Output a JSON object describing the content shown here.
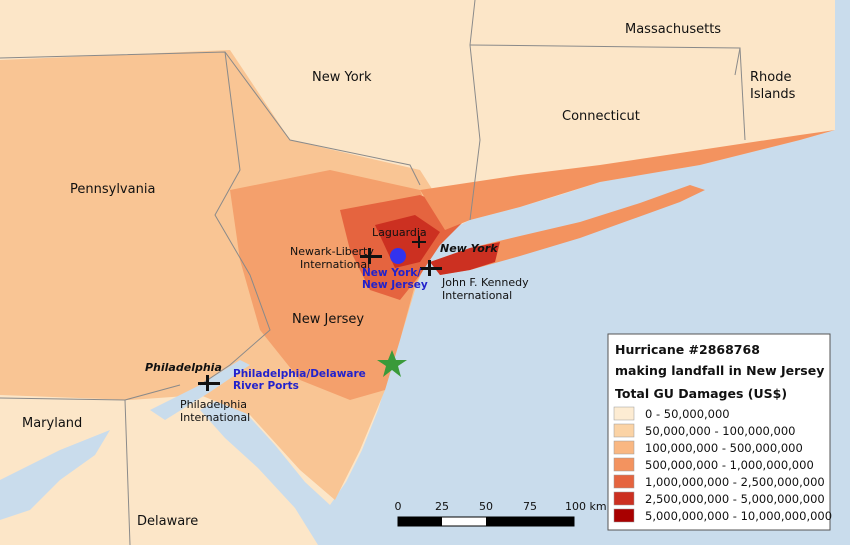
{
  "map": {
    "state_labels": [
      "Massachusetts",
      "New York",
      "Rhode",
      "Islands",
      "Connecticut",
      "Pennsylvania",
      "New Jersey",
      "Maryland",
      "Delaware"
    ],
    "airports": {
      "laguardia": "Laguardia",
      "newark": [
        "Newark-Liberty",
        "International"
      ],
      "jfk": [
        "John F. Kennedy",
        "International"
      ],
      "philadelphia": [
        "Philadelphia",
        "International"
      ]
    },
    "cities": {
      "new_york": "New York",
      "philadelphia": "Philadelphia"
    },
    "ports": {
      "ny_nj": [
        "New York/",
        "New Jersey"
      ],
      "philadelphia": [
        "Philadelphia/Delaware",
        "River Ports"
      ]
    },
    "legend": {
      "title": [
        "Hurricane #2868768",
        "making landfall in New Jersey"
      ],
      "subtitle": "Total GU Damages (US$)",
      "classes": [
        {
          "label": "0 - 50,000,000",
          "color": "#fdecd3"
        },
        {
          "label": "50,000,000 - 100,000,000",
          "color": "#fbd3a5"
        },
        {
          "label": "100,000,000 - 500,000,000",
          "color": "#f9b782"
        },
        {
          "label": "500,000,000 - 1,000,000,000",
          "color": "#f3935f"
        },
        {
          "label": "1,000,000,000 - 2,500,000,000",
          "color": "#e5643f"
        },
        {
          "label": "2,500,000,000 - 5,000,000,000",
          "color": "#cc3021"
        },
        {
          "label": "5,000,000,000 - 10,000,000,000",
          "color": "#a80000"
        }
      ]
    },
    "scale_bar": [
      "0",
      "25",
      "50",
      "75",
      "100 km"
    ]
  }
}
